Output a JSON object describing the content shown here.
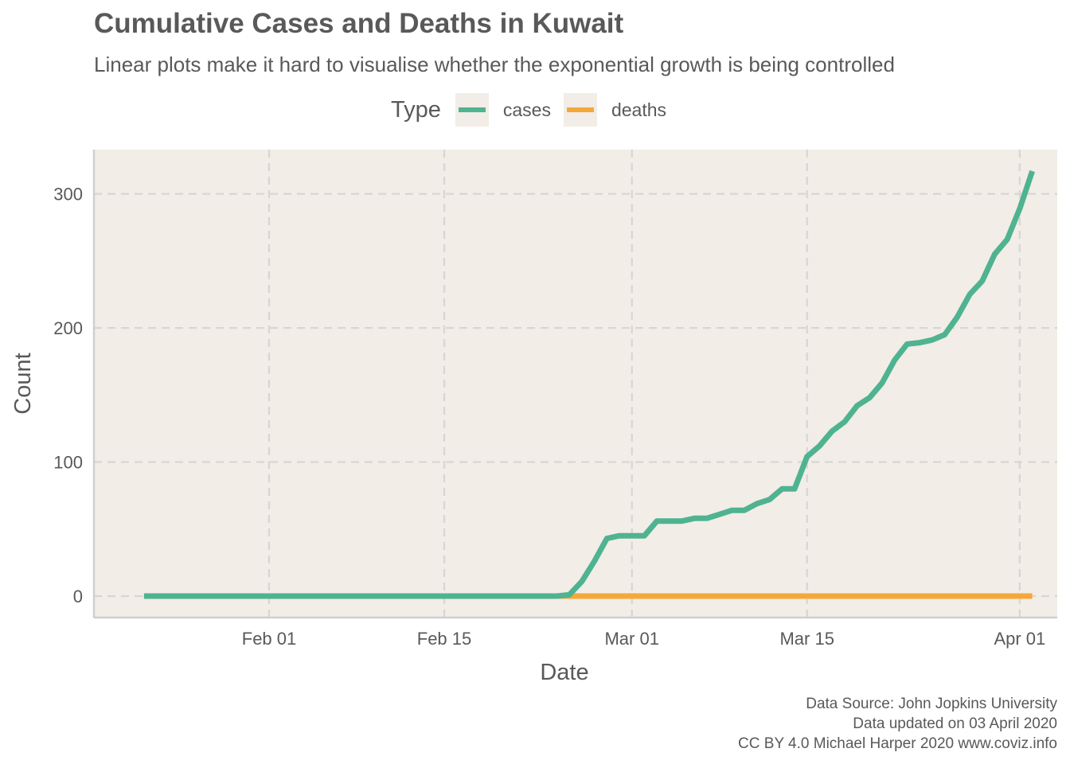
{
  "chart_data": {
    "type": "line",
    "title": "Cumulative Cases and Deaths in Kuwait",
    "subtitle": "Linear plots make it hard to visualise whether the exponential growth is being controlled",
    "xlabel": "Date",
    "ylabel": "Count",
    "x_start": "2020-01-22",
    "x_ticks": [
      {
        "date": "2020-02-01",
        "label": "Feb 01"
      },
      {
        "date": "2020-02-15",
        "label": "Feb 15"
      },
      {
        "date": "2020-03-01",
        "label": "Mar 01"
      },
      {
        "date": "2020-03-15",
        "label": "Mar 15"
      },
      {
        "date": "2020-04-01",
        "label": "Apr 01"
      }
    ],
    "xlim": [
      "2020-01-18",
      "2020-04-04"
    ],
    "y_ticks": [
      0,
      100,
      200,
      300
    ],
    "ylim": [
      -16,
      333
    ],
    "grid": true,
    "legend": {
      "title": "Type",
      "position": "top"
    },
    "series": [
      {
        "name": "cases",
        "color": "#4fb392",
        "values": [
          0,
          0,
          0,
          0,
          0,
          0,
          0,
          0,
          0,
          0,
          0,
          0,
          0,
          0,
          0,
          0,
          0,
          0,
          0,
          0,
          0,
          0,
          0,
          0,
          0,
          0,
          0,
          0,
          0,
          0,
          0,
          0,
          0,
          0,
          1,
          11,
          26,
          43,
          45,
          45,
          45,
          56,
          56,
          56,
          58,
          58,
          61,
          64,
          64,
          69,
          72,
          80,
          80,
          104,
          112,
          123,
          130,
          142,
          148,
          159,
          176,
          188,
          189,
          191,
          195,
          208,
          225,
          235,
          255,
          266,
          289,
          317
        ]
      },
      {
        "name": "deaths",
        "color": "#f5a83a",
        "values": [
          0,
          0,
          0,
          0,
          0,
          0,
          0,
          0,
          0,
          0,
          0,
          0,
          0,
          0,
          0,
          0,
          0,
          0,
          0,
          0,
          0,
          0,
          0,
          0,
          0,
          0,
          0,
          0,
          0,
          0,
          0,
          0,
          0,
          0,
          0,
          0,
          0,
          0,
          0,
          0,
          0,
          0,
          0,
          0,
          0,
          0,
          0,
          0,
          0,
          0,
          0,
          0,
          0,
          0,
          0,
          0,
          0,
          0,
          0,
          0,
          0,
          0,
          0,
          0,
          0,
          0,
          0,
          0,
          0,
          0,
          0,
          0
        ]
      }
    ]
  },
  "caption": [
    "Data Source: John Jopkins University",
    "Data updated on 03 April 2020",
    "CC BY 4.0 Michael Harper 2020 www.coviz.info"
  ],
  "colors": {
    "panel_bg": "#f2ede6",
    "grid": "#d6d6d6",
    "text": "#595959"
  }
}
